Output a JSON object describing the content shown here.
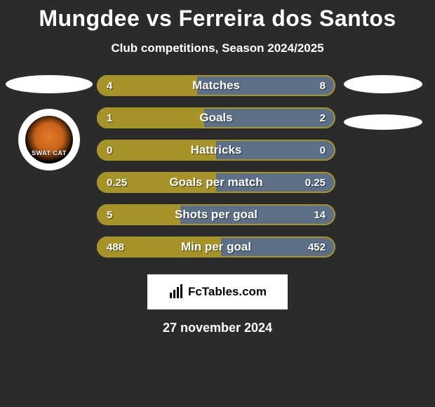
{
  "title": "Mungdee vs Ferreira dos Santos",
  "subtitle": "Club competitions, Season 2024/2025",
  "brand": "FcTables.com",
  "date": "27 november 2024",
  "logo_text": "SWAT CAT",
  "colors": {
    "left": "#a69329",
    "right": "#5d6f86",
    "background": "#2b2b2b",
    "bar_bg": "#5d6f86",
    "text": "#ffffff"
  },
  "bars": [
    {
      "label": "Matches",
      "left_val": "4",
      "right_val": "8",
      "left_pct": 42,
      "border": "#a69329"
    },
    {
      "label": "Goals",
      "left_val": "1",
      "right_val": "2",
      "left_pct": 45,
      "border": "#a69329"
    },
    {
      "label": "Hattricks",
      "left_val": "0",
      "right_val": "0",
      "left_pct": 50,
      "border": "#a69329"
    },
    {
      "label": "Goals per match",
      "left_val": "0.25",
      "right_val": "0.25",
      "left_pct": 50,
      "border": "#a69329"
    },
    {
      "label": "Shots per goal",
      "left_val": "5",
      "right_val": "14",
      "left_pct": 35,
      "border": "#a69329"
    },
    {
      "label": "Min per goal",
      "left_val": "488",
      "right_val": "452",
      "left_pct": 52,
      "border": "#a69329"
    }
  ]
}
